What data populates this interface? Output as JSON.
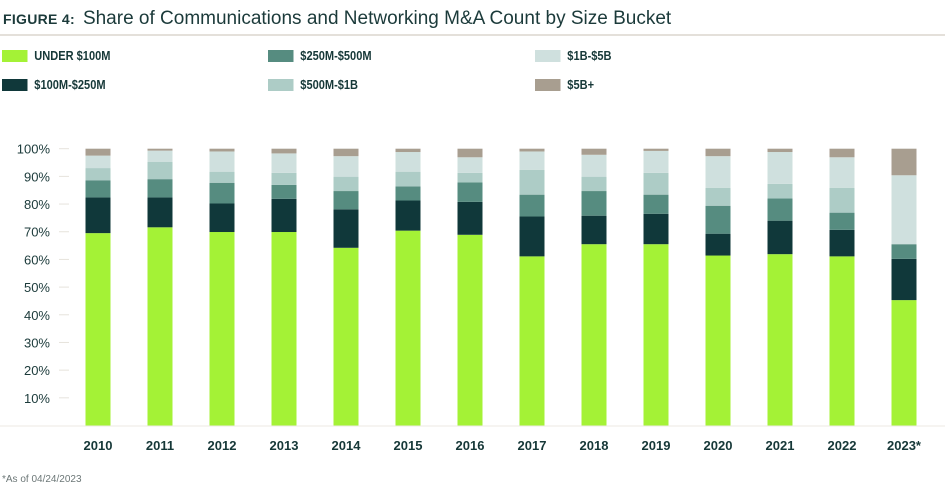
{
  "figure_label": "FIGURE 4:",
  "title": "Share of Communications and Networking M&A Count by Size Bucket",
  "footnote": "*As of 04/24/2023",
  "chart_data": {
    "type": "bar",
    "stacked": true,
    "title": "Share of Communications and Networking M&A Count by Size Bucket",
    "xlabel": "",
    "ylabel": "",
    "ylim": [
      0,
      100
    ],
    "yticks": [
      "10%",
      "20%",
      "30%",
      "40%",
      "50%",
      "60%",
      "70%",
      "80%",
      "90%",
      "100%"
    ],
    "legend_position": "top",
    "categories": [
      "2010",
      "2011",
      "2012",
      "2013",
      "2014",
      "2015",
      "2016",
      "2017",
      "2018",
      "2019",
      "2020",
      "2021",
      "2022",
      "2023*"
    ],
    "series": [
      {
        "name": "UNDER $100M",
        "color": "#a4f236",
        "values": [
          69.5,
          71.6,
          69.9,
          69.9,
          64.2,
          70.4,
          68.9,
          61.1,
          65.5,
          65.5,
          61.4,
          61.9,
          61.1,
          45.3
        ]
      },
      {
        "name": "$100M-$250M",
        "color": "#10383a",
        "values": [
          12.9,
          10.8,
          10.3,
          12.0,
          13.9,
          10.9,
          11.9,
          14.4,
          10.3,
          11.0,
          7.9,
          12.1,
          9.6,
          14.9
        ]
      },
      {
        "name": "$250M-$500M",
        "color": "#568c80",
        "values": [
          6.2,
          6.6,
          7.5,
          5.0,
          6.6,
          5.1,
          7.0,
          7.9,
          8.9,
          6.9,
          10.1,
          8.0,
          6.2,
          5.3
        ]
      },
      {
        "name": "$500M-$1B",
        "color": "#adccc6",
        "values": [
          4.4,
          6.3,
          4.0,
          4.4,
          5.2,
          5.3,
          3.5,
          9.0,
          5.2,
          7.9,
          6.5,
          5.3,
          9.0,
          0
        ]
      },
      {
        "name": "$1B-$5B",
        "color": "#cfe0de",
        "values": [
          4.5,
          4.0,
          7.3,
          7.0,
          7.4,
          7.1,
          5.6,
          6.6,
          7.9,
          7.9,
          11.4,
          11.5,
          11.0,
          24.9
        ]
      },
      {
        "name": "$5B+",
        "color": "#a89e90",
        "values": [
          2.5,
          0.7,
          1.0,
          1.7,
          2.7,
          1.2,
          3.1,
          1.0,
          2.2,
          0.8,
          2.7,
          1.2,
          3.1,
          9.6
        ]
      }
    ]
  }
}
